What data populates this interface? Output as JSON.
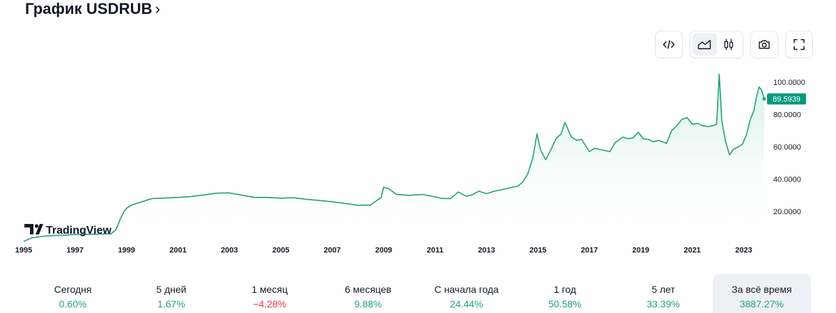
{
  "header": {
    "title": "График USDRUB",
    "chevron": "›"
  },
  "toolbar": {
    "embed_icon": "code-embed-icon",
    "area_icon": "area-chart-icon",
    "candles_icon": "candlestick-icon",
    "snapshot_icon": "camera-icon",
    "fullscreen_icon": "fullscreen-icon"
  },
  "colors": {
    "line": "#22a07a",
    "fill_top": "#cfeee3",
    "price_tag_bg": "#089981",
    "positive": "#22a07a",
    "negative": "#f23645",
    "axis_text": "#131722"
  },
  "watermark": {
    "text": "TradingView"
  },
  "price_tag": "89.5939",
  "chart_data": {
    "type": "area",
    "title": "",
    "xlabel": "",
    "ylabel": "",
    "xlim": [
      1995.0,
      2023.8
    ],
    "ylim": [
      0,
      105
    ],
    "y_ticks": [
      "20.0000",
      "40.0000",
      "60.0000",
      "80.0000",
      "100.0000"
    ],
    "x_ticks": [
      "1995",
      "1997",
      "1999",
      "2001",
      "2003",
      "2005",
      "2007",
      "2009",
      "2011",
      "2013",
      "2015",
      "2017",
      "2019",
      "2021",
      "2023"
    ],
    "last_value": 89.5939,
    "series": [
      {
        "x": [
          1995.0,
          1995.3,
          1995.7,
          1996.0,
          1996.5,
          1997.0,
          1997.5,
          1998.0,
          1998.4,
          1998.6,
          1998.75,
          1998.9,
          1999.0,
          1999.2,
          1999.5,
          2000.0,
          2000.5,
          2001.0,
          2001.5,
          2002.0,
          2002.5,
          2003.0,
          2003.5,
          2004.0,
          2004.5,
          2005.0,
          2005.5,
          2006.0,
          2006.5,
          2007.0,
          2007.5,
          2008.0,
          2008.5,
          2008.75,
          2008.9,
          2009.0,
          2009.2,
          2009.5,
          2010.0,
          2010.5,
          2011.0,
          2011.3,
          2011.6,
          2011.9,
          2012.2,
          2012.4,
          2012.7,
          2013.0,
          2013.3,
          2013.6,
          2014.0,
          2014.2,
          2014.4,
          2014.6,
          2014.8,
          2014.96,
          2015.1,
          2015.3,
          2015.5,
          2015.7,
          2015.9,
          2016.05,
          2016.3,
          2016.5,
          2016.7,
          2017.0,
          2017.2,
          2017.5,
          2017.8,
          2018.0,
          2018.3,
          2018.5,
          2018.7,
          2018.9,
          2019.1,
          2019.3,
          2019.5,
          2019.7,
          2020.0,
          2020.2,
          2020.4,
          2020.6,
          2020.8,
          2021.0,
          2021.2,
          2021.4,
          2021.6,
          2021.8,
          2021.95,
          2022.05,
          2022.15,
          2022.3,
          2022.45,
          2022.6,
          2022.8,
          2022.95,
          2023.1,
          2023.25,
          2023.4,
          2023.5,
          2023.6,
          2023.7,
          2023.8
        ],
        "values": [
          1.5,
          3.6,
          4.5,
          5.0,
          5.3,
          5.7,
          5.9,
          6.0,
          6.2,
          9.0,
          15.0,
          20.0,
          22.0,
          24.0,
          25.5,
          28.0,
          28.3,
          28.7,
          29.2,
          30.2,
          31.3,
          31.5,
          30.0,
          28.7,
          28.7,
          28.2,
          28.5,
          27.5,
          26.8,
          26.0,
          25.0,
          23.8,
          24.0,
          27.0,
          28.5,
          35.0,
          34.0,
          30.5,
          30.0,
          30.5,
          29.0,
          28.0,
          28.0,
          32.0,
          29.5,
          30.0,
          32.5,
          31.0,
          32.5,
          33.5,
          35.0,
          35.5,
          38.0,
          43.0,
          53.0,
          68.0,
          58.0,
          52.0,
          58.0,
          65.0,
          68.0,
          75.0,
          66.0,
          64.0,
          64.5,
          57.0,
          59.0,
          58.0,
          57.0,
          62.5,
          66.0,
          65.0,
          65.5,
          69.0,
          65.0,
          64.5,
          63.0,
          64.0,
          62.0,
          70.0,
          73.0,
          77.0,
          78.0,
          74.0,
          74.5,
          73.0,
          72.5,
          73.0,
          74.0,
          105.0,
          76.0,
          63.0,
          55.0,
          58.5,
          60.0,
          61.5,
          67.0,
          76.5,
          82.5,
          91.0,
          97.0,
          95.0,
          89.5939
        ]
      }
    ]
  },
  "periods": [
    {
      "label": "Сегодня",
      "value": "0.60%",
      "sign": "positive"
    },
    {
      "label": "5 дней",
      "value": "1.67%",
      "sign": "positive"
    },
    {
      "label": "1 месяц",
      "value": "−4.28%",
      "sign": "negative"
    },
    {
      "label": "6 месяцев",
      "value": "9.88%",
      "sign": "positive"
    },
    {
      "label": "С начала года",
      "value": "24.44%",
      "sign": "positive"
    },
    {
      "label": "1 год",
      "value": "50.58%",
      "sign": "positive"
    },
    {
      "label": "5 лет",
      "value": "33.39%",
      "sign": "positive"
    },
    {
      "label": "За всё время",
      "value": "3887.27%",
      "sign": "positive",
      "active": true
    }
  ]
}
